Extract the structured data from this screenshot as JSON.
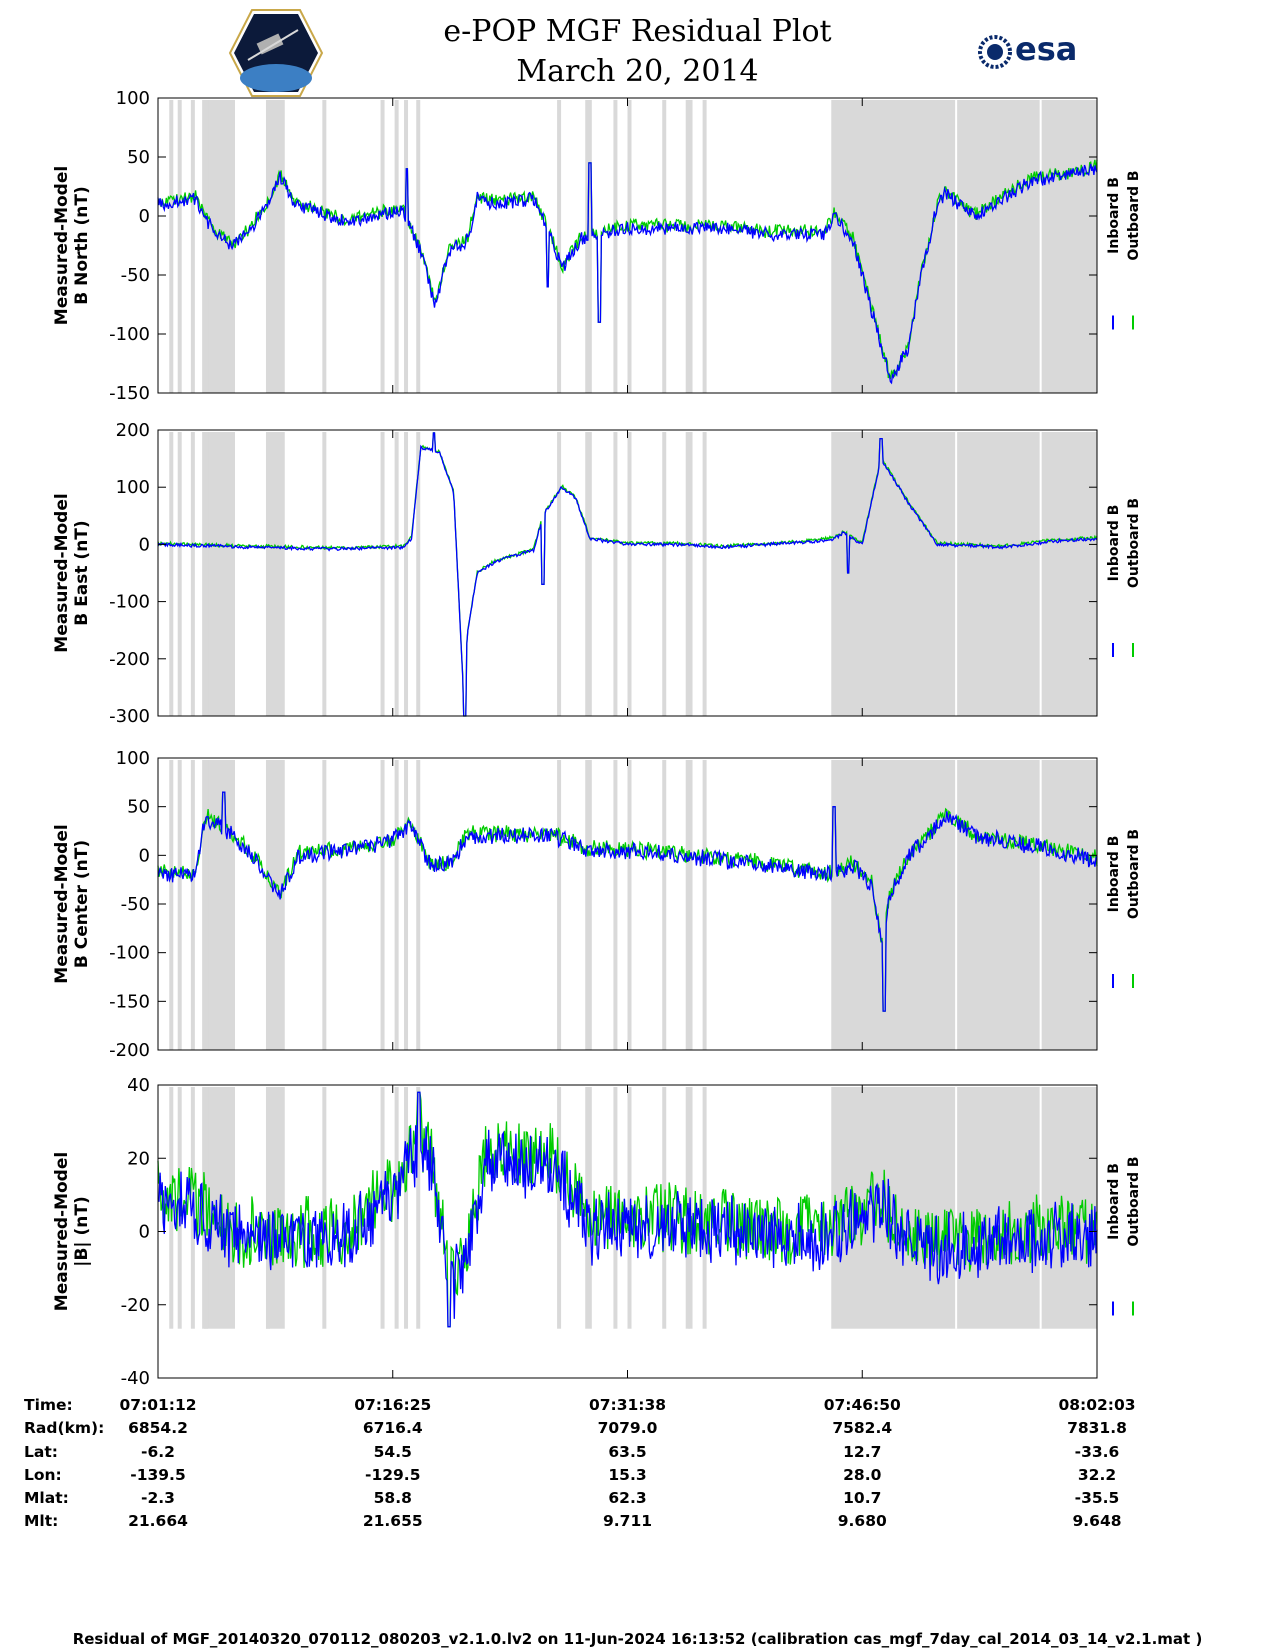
{
  "header": {
    "title_line1": "e-POP MGF Residual Plot",
    "title_line2": "March 20, 2014",
    "logo_left": "cassiope-satellite-logo",
    "logo_right_text": "esa",
    "logo_right": "esa-logo"
  },
  "footer": {
    "caption": "Residual of MGF_20140320_070112_080203_v2.1.0.lv2 on 11-Jun-2024 16:13:52 (calibration cas_mgf_7day_cal_2014_03_14_v2.1.mat )"
  },
  "orbit_table": {
    "row_labels": [
      "Time:",
      "Rad(km):",
      "Lat:",
      "Lon:",
      "Mlat:",
      "Mlt:"
    ],
    "columns": [
      {
        "time": "07:01:12",
        "rad": "6854.2",
        "lat": "-6.2",
        "lon": "-139.5",
        "mlat": "-2.3",
        "mlt": "21.664"
      },
      {
        "time": "07:16:25",
        "rad": "6716.4",
        "lat": "54.5",
        "lon": "-129.5",
        "mlat": "58.8",
        "mlt": "21.655"
      },
      {
        "time": "07:31:38",
        "rad": "7079.0",
        "lat": "63.5",
        "lon": "15.3",
        "mlat": "62.3",
        "mlt": "9.711"
      },
      {
        "time": "07:46:50",
        "rad": "7582.4",
        "lat": "12.7",
        "lon": "28.0",
        "mlat": "10.7",
        "mlt": "9.680"
      },
      {
        "time": "08:02:03",
        "rad": "7831.8",
        "lat": "-33.6",
        "lon": "32.2",
        "mlat": "-35.5",
        "mlt": "9.648"
      }
    ]
  },
  "colors": {
    "inboard": "#0000ff",
    "outboard": "#00cc00",
    "shade": "#d9d9d9"
  },
  "chart_data": [
    {
      "type": "line",
      "ylabel_line1": "Measured-Model",
      "ylabel_line2": "B North (nT)",
      "ylim": [
        -150,
        100
      ],
      "yticks": [
        100,
        50,
        0,
        -50,
        -100,
        -150
      ],
      "series": [
        {
          "name": "Inboard B"
        },
        {
          "name": "Outboard B"
        }
      ],
      "x_time_range": [
        "07:01:12",
        "08:02:03"
      ],
      "anchors": [
        [
          0,
          10
        ],
        [
          0.04,
          14
        ],
        [
          0.06,
          -15
        ],
        [
          0.08,
          -25
        ],
        [
          0.1,
          -10
        ],
        [
          0.12,
          15
        ],
        [
          0.13,
          35
        ],
        [
          0.145,
          10
        ],
        [
          0.2,
          -5
        ],
        [
          0.26,
          5
        ],
        [
          0.28,
          -30
        ],
        [
          0.295,
          -75
        ],
        [
          0.31,
          -30
        ],
        [
          0.33,
          -20
        ],
        [
          0.34,
          15
        ],
        [
          0.36,
          10
        ],
        [
          0.4,
          15
        ],
        [
          0.42,
          -20
        ],
        [
          0.43,
          -45
        ],
        [
          0.45,
          -20
        ],
        [
          0.5,
          -10
        ],
        [
          0.55,
          -10
        ],
        [
          0.6,
          -10
        ],
        [
          0.65,
          -15
        ],
        [
          0.7,
          -15
        ],
        [
          0.71,
          -15
        ],
        [
          0.72,
          0
        ],
        [
          0.74,
          -20
        ],
        [
          0.76,
          -80
        ],
        [
          0.78,
          -140
        ],
        [
          0.8,
          -110
        ],
        [
          0.81,
          -60
        ],
        [
          0.83,
          10
        ],
        [
          0.84,
          20
        ],
        [
          0.86,
          5
        ],
        [
          0.87,
          0
        ],
        [
          0.89,
          10
        ],
        [
          0.93,
          30
        ],
        [
          0.97,
          35
        ],
        [
          1,
          40
        ]
      ],
      "noise": 6,
      "spikes": [
        [
          0.47,
          -90
        ],
        [
          0.46,
          45
        ],
        [
          0.265,
          40
        ],
        [
          0.415,
          -60
        ]
      ]
    },
    {
      "type": "line",
      "ylabel_line1": "Measured-Model",
      "ylabel_line2": "B East (nT)",
      "ylim": [
        -300,
        200
      ],
      "yticks": [
        200,
        100,
        0,
        -100,
        -200,
        -300
      ],
      "series": [
        {
          "name": "Inboard B"
        },
        {
          "name": "Outboard B"
        }
      ],
      "x_time_range": [
        "07:01:12",
        "08:02:03"
      ],
      "anchors": [
        [
          0,
          0
        ],
        [
          0.1,
          -5
        ],
        [
          0.2,
          -8
        ],
        [
          0.26,
          -5
        ],
        [
          0.27,
          10
        ],
        [
          0.28,
          170
        ],
        [
          0.3,
          160
        ],
        [
          0.315,
          90
        ],
        [
          0.325,
          -250
        ],
        [
          0.33,
          -150
        ],
        [
          0.34,
          -50
        ],
        [
          0.36,
          -30
        ],
        [
          0.4,
          -10
        ],
        [
          0.41,
          50
        ],
        [
          0.43,
          100
        ],
        [
          0.445,
          80
        ],
        [
          0.46,
          10
        ],
        [
          0.5,
          0
        ],
        [
          0.55,
          0
        ],
        [
          0.6,
          -5
        ],
        [
          0.65,
          0
        ],
        [
          0.7,
          5
        ],
        [
          0.72,
          10
        ],
        [
          0.73,
          20
        ],
        [
          0.75,
          0
        ],
        [
          0.77,
          150
        ],
        [
          0.8,
          70
        ],
        [
          0.83,
          0
        ],
        [
          0.9,
          -5
        ],
        [
          0.95,
          5
        ],
        [
          1,
          10
        ]
      ],
      "noise": 3,
      "spikes": [
        [
          0.327,
          -300
        ],
        [
          0.294,
          195
        ],
        [
          0.41,
          -70
        ],
        [
          0.735,
          -50
        ],
        [
          0.77,
          185
        ]
      ]
    },
    {
      "type": "line",
      "ylabel_line1": "Measured-Model",
      "ylabel_line2": "B Center (nT)",
      "ylim": [
        -200,
        100
      ],
      "yticks": [
        100,
        50,
        0,
        -50,
        -100,
        -150,
        -200
      ],
      "series": [
        {
          "name": "Inboard B"
        },
        {
          "name": "Outboard B"
        }
      ],
      "x_time_range": [
        "07:01:12",
        "08:02:03"
      ],
      "anchors": [
        [
          0,
          -20
        ],
        [
          0.04,
          -20
        ],
        [
          0.05,
          40
        ],
        [
          0.08,
          20
        ],
        [
          0.1,
          0
        ],
        [
          0.13,
          -40
        ],
        [
          0.15,
          0
        ],
        [
          0.2,
          5
        ],
        [
          0.25,
          15
        ],
        [
          0.27,
          30
        ],
        [
          0.29,
          -10
        ],
        [
          0.31,
          -10
        ],
        [
          0.33,
          20
        ],
        [
          0.38,
          20
        ],
        [
          0.42,
          20
        ],
        [
          0.46,
          5
        ],
        [
          0.5,
          5
        ],
        [
          0.55,
          0
        ],
        [
          0.6,
          -5
        ],
        [
          0.65,
          -10
        ],
        [
          0.7,
          -20
        ],
        [
          0.72,
          -20
        ],
        [
          0.74,
          -10
        ],
        [
          0.76,
          -30
        ],
        [
          0.77,
          -90
        ],
        [
          0.78,
          -40
        ],
        [
          0.8,
          0
        ],
        [
          0.83,
          30
        ],
        [
          0.84,
          40
        ],
        [
          0.87,
          20
        ],
        [
          0.93,
          10
        ],
        [
          1,
          -5
        ]
      ],
      "noise": 9,
      "spikes": [
        [
          0.773,
          -160
        ],
        [
          0.72,
          50
        ],
        [
          0.07,
          65
        ]
      ]
    },
    {
      "type": "line",
      "ylabel_line1": "Measured-Model",
      "ylabel_line2": "|B| (nT)",
      "ylim": [
        -40,
        40
      ],
      "yticks": [
        40,
        20,
        0,
        -20,
        -40
      ],
      "series": [
        {
          "name": "Inboard B"
        },
        {
          "name": "Outboard B"
        }
      ],
      "x_time_range": [
        "07:01:12",
        "08:02:03"
      ],
      "anchors": [
        [
          0,
          8
        ],
        [
          0.05,
          5
        ],
        [
          0.08,
          -2
        ],
        [
          0.2,
          -2
        ],
        [
          0.25,
          10
        ],
        [
          0.28,
          25
        ],
        [
          0.29,
          20
        ],
        [
          0.31,
          -10
        ],
        [
          0.315,
          -15
        ],
        [
          0.33,
          -5
        ],
        [
          0.35,
          20
        ],
        [
          0.42,
          18
        ],
        [
          0.44,
          10
        ],
        [
          0.46,
          0
        ],
        [
          0.5,
          2
        ],
        [
          0.6,
          1
        ],
        [
          0.7,
          -2
        ],
        [
          0.72,
          0
        ],
        [
          0.77,
          7
        ],
        [
          0.8,
          -2
        ],
        [
          0.83,
          -5
        ],
        [
          0.9,
          -2
        ],
        [
          1,
          -1
        ]
      ],
      "noise": 10,
      "spikes": [
        [
          0.278,
          38
        ],
        [
          0.31,
          -26
        ]
      ]
    }
  ]
}
